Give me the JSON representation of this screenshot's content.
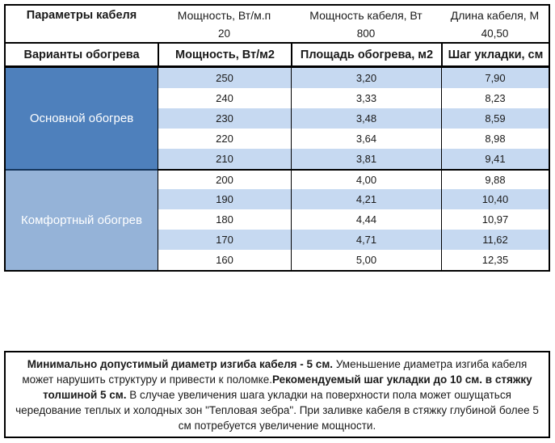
{
  "table": {
    "params": {
      "title": "Параметры кабеля",
      "headers": [
        "Мощность, Вт/м.п",
        "Мощность кабеля, Вт",
        "Длина кабеля, М"
      ],
      "values": [
        "20",
        "800",
        "40,50"
      ]
    },
    "variants": {
      "title": "Варианты обогрева",
      "headers": [
        "Мощность, Вт/м2",
        "Площадь обогрева, м2",
        "Шаг укладки, см"
      ]
    },
    "sections": [
      {
        "label": "Основной обогрев",
        "rows": [
          [
            "250",
            "3,20",
            "7,90"
          ],
          [
            "240",
            "3,33",
            "8,23"
          ],
          [
            "230",
            "3,48",
            "8,59"
          ],
          [
            "220",
            "3,64",
            "8,98"
          ],
          [
            "210",
            "3,81",
            "9,41"
          ]
        ]
      },
      {
        "label": "Комфортный обогрев",
        "rows": [
          [
            "200",
            "4,00",
            "9,88"
          ],
          [
            "190",
            "4,21",
            "10,40"
          ],
          [
            "180",
            "4,44",
            "10,97"
          ],
          [
            "170",
            "4,71",
            "11,62"
          ],
          [
            "160",
            "5,00",
            "12,35"
          ]
        ]
      }
    ]
  },
  "note": {
    "bold1": "Минимально допустимый диаметр изгиба кабеля - 5 см.",
    "text1": " Уменьшение диаметра изгиба кабеля может нарушить структуру и привести к поломке.",
    "bold2": "Рекомендуемый шаг укладки до 10 см. в стяжку толшиной 5 см.",
    "text2": " В случае увеличения шага укладки на поверхности пола может ошущаться чередование теплых и холодных зон \"Тепловая зебра\". При заливке кабеля в стяжку глубиной более 5 см потребуется увеличение мощности."
  },
  "colors": {
    "main_section_blue": "#4E80BC",
    "comfort_section_blue": "#95B3D8",
    "row_band_blue": "#C6D9F1",
    "border_black": "#000000"
  }
}
